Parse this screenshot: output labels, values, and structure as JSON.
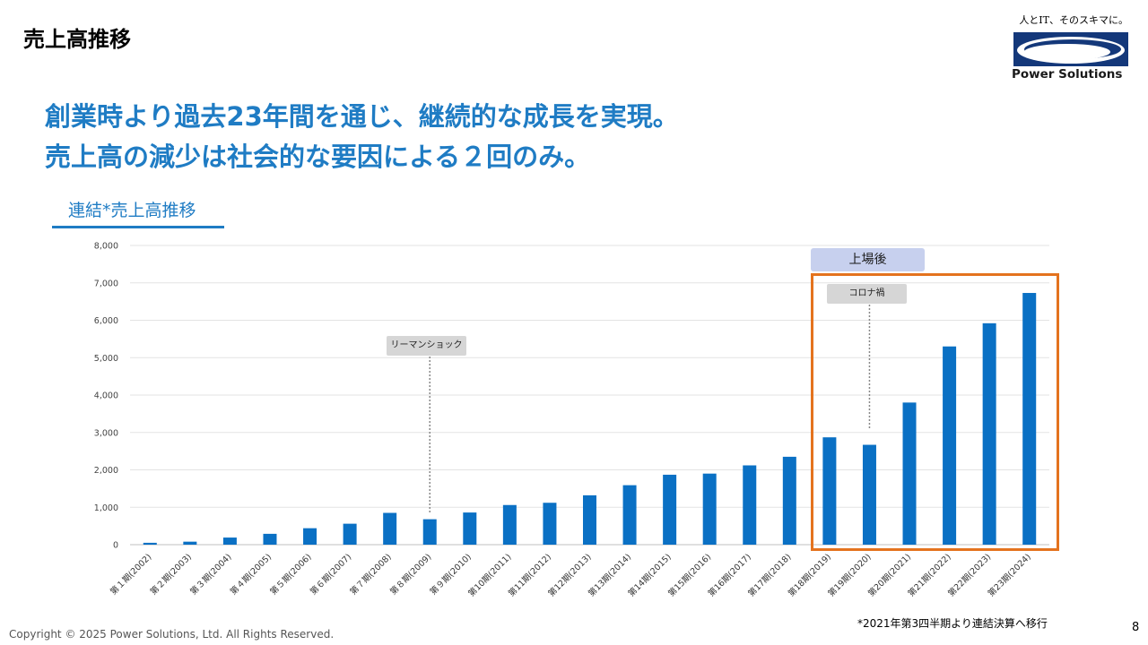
{
  "header": {
    "title": "売上高推移",
    "logo": {
      "tagline": "人とIT、そのスキマに。",
      "name": "Power Solutions",
      "icon": "power-solutions-logo-icon"
    }
  },
  "headline": {
    "line1": "創業時より過去23年間を通じ、継続的な成長を実現。",
    "line2": "売上高の減少は社会的な要因による２回のみ。"
  },
  "chart_title": "連結*売上高推移",
  "annotations": {
    "listed": "上場後",
    "lehman": "リーマンショック",
    "corona": "コロナ禍"
  },
  "footnote": "*2021年第3四半期より連結決算へ移行",
  "copyright": "Copyright © 2025 Power Solutions, Ltd. All Rights Reserved.",
  "page_number": "8",
  "colors": {
    "bar": "#0a70c4",
    "headline": "#1f7cc4",
    "highlight_frame": "#e4731e",
    "listed_badge": "#c7d0ee",
    "callout": "#d6d6d6"
  },
  "chart_data": {
    "type": "bar",
    "title": "連結*売上高推移",
    "categories": [
      "第１期(2002)",
      "第２期(2003)",
      "第３期(2004)",
      "第４期(2005)",
      "第５期(2006)",
      "第６期(2007)",
      "第７期(2008)",
      "第８期(2009)",
      "第９期(2010)",
      "第10期(2011)",
      "第11期(2012)",
      "第12期(2013)",
      "第13期(2014)",
      "第14期(2015)",
      "第15期(2016)",
      "第16期(2017)",
      "第17期(2018)",
      "第18期(2019)",
      "第19期(2020)",
      "第20期(2021)",
      "第21期(2022)",
      "第22期(2023)",
      "第23期(2024)"
    ],
    "values": [
      50,
      80,
      190,
      290,
      440,
      560,
      850,
      680,
      860,
      1060,
      1120,
      1320,
      1590,
      1870,
      1900,
      2120,
      2350,
      2870,
      2670,
      3800,
      5300,
      5920,
      6730
    ],
    "ylim": [
      0,
      8000
    ],
    "yticks": [
      0,
      1000,
      2000,
      3000,
      4000,
      5000,
      6000,
      7000,
      8000
    ],
    "ytick_labels": [
      "0",
      "1,000",
      "2,000",
      "3,000",
      "4,000",
      "5,000",
      "6,000",
      "7,000",
      "8,000"
    ],
    "grid": true,
    "xlabel": "",
    "ylabel": ""
  }
}
